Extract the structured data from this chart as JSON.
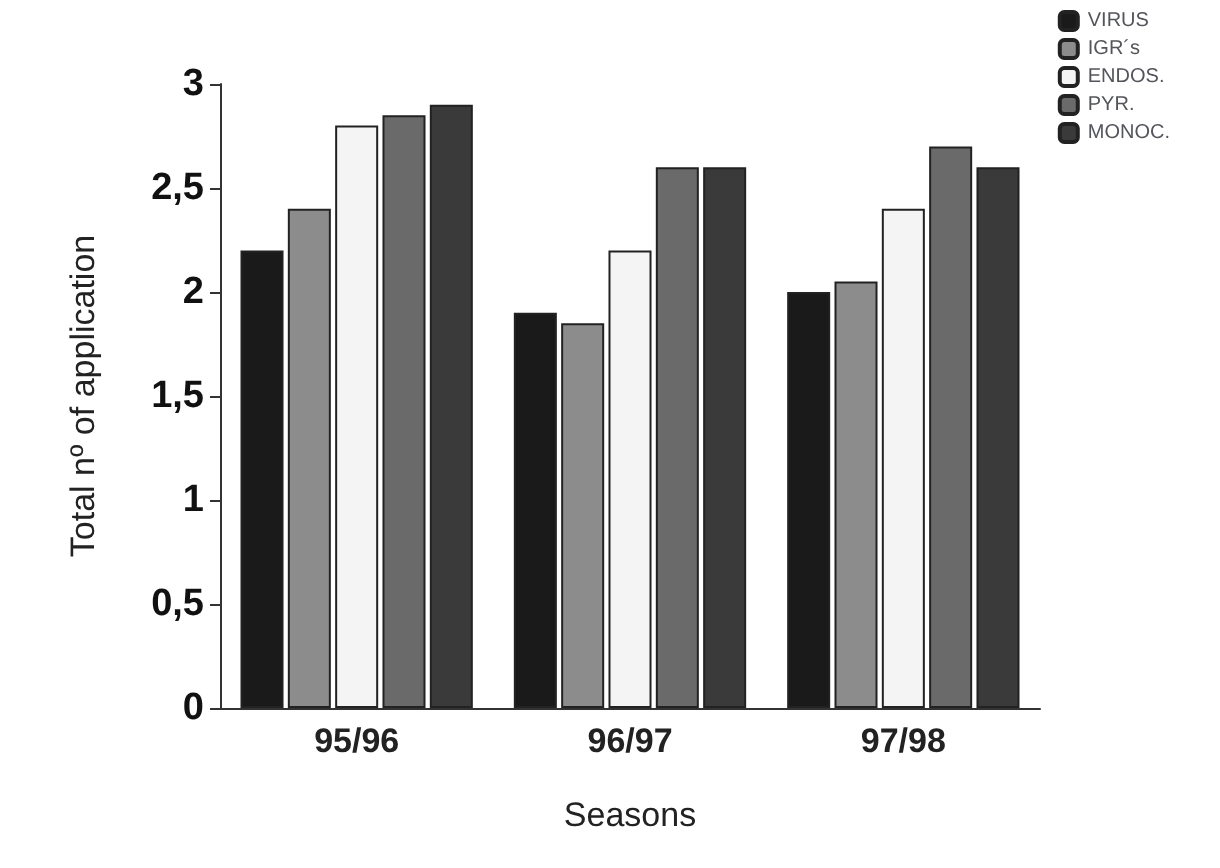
{
  "chart_data": {
    "type": "bar",
    "xlabel": "Seasons",
    "ylabel": "Total nº of application",
    "categories": [
      "95/96",
      "96/97",
      "97/98"
    ],
    "series": [
      {
        "name": "VIRUS",
        "color": "#1a1a1a",
        "values": [
          2.2,
          1.9,
          2.0
        ]
      },
      {
        "name": "IGR´s",
        "color": "#8c8c8c",
        "values": [
          2.4,
          1.85,
          2.05
        ]
      },
      {
        "name": "ENDOS.",
        "color": "#f4f4f4",
        "values": [
          2.8,
          2.2,
          2.4
        ]
      },
      {
        "name": "PYR.",
        "color": "#6a6a6a",
        "values": [
          2.85,
          2.6,
          2.7
        ]
      },
      {
        "name": "MONOC.",
        "color": "#3a3a3a",
        "values": [
          2.9,
          2.6,
          2.6
        ]
      }
    ],
    "ylim": [
      0,
      3
    ],
    "yticks": [
      0,
      {
        "value": 0.5,
        "label": "0,5"
      },
      1,
      {
        "value": 1.5,
        "label": "1,5"
      },
      2,
      {
        "value": 2.5,
        "label": "2,5"
      },
      3
    ],
    "grid": false,
    "legend": "top right"
  }
}
